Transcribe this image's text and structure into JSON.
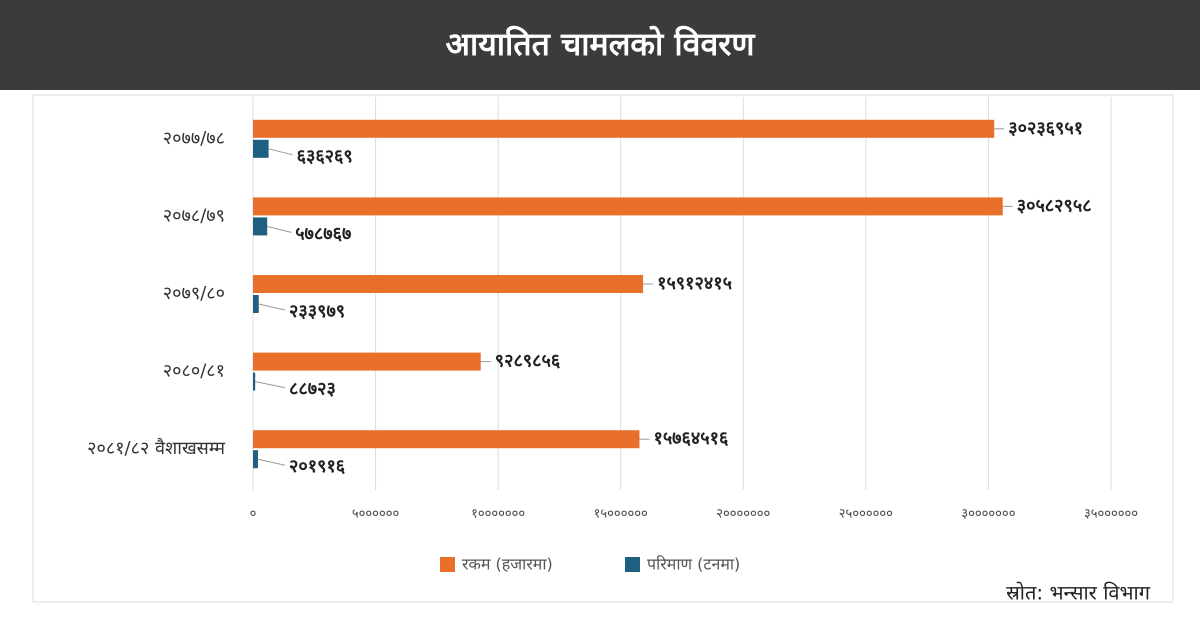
{
  "chart_data": {
    "type": "bar",
    "orientation": "horizontal",
    "title": "आयातित चामलको विवरण",
    "source": "स्रोत: भन्सार विभाग",
    "categories": [
      "२०७७/७८",
      "२०७८/७९",
      "२०७९/८०",
      "२०८०/८१",
      "२०८१/८२ वैशाखसम्म"
    ],
    "series": [
      {
        "name": "रकम (हजारमा)",
        "color": "#e8702a",
        "values": [
          30236951,
          30582958,
          15912415,
          9289856,
          15764516
        ],
        "value_labels": [
          "३०२३६९५१",
          "३०५८२९५८",
          "१५९१२४१५",
          "९२८९८५६",
          "१५७६४५१६"
        ]
      },
      {
        "name": "परिमाण (टनमा)",
        "color": "#1f5f7f",
        "values": [
          636269,
          578767,
          233979,
          88723,
          201916
        ],
        "value_labels": [
          "६३६२६९",
          "५७८७६७",
          "२३३९७९",
          "८८७२३",
          "२०१९१६"
        ]
      }
    ],
    "xlim": [
      0,
      35000000
    ],
    "xticks": [
      {
        "value": 0,
        "label": "०"
      },
      {
        "value": 5000000,
        "label": "५००००००"
      },
      {
        "value": 10000000,
        "label": "१०००००००"
      },
      {
        "value": 15000000,
        "label": "१५००००००"
      },
      {
        "value": 20000000,
        "label": "२०००००००"
      },
      {
        "value": 25000000,
        "label": "२५००००००"
      },
      {
        "value": 30000000,
        "label": "३०००००००"
      },
      {
        "value": 35000000,
        "label": "३५००००००"
      }
    ],
    "grid": true,
    "legend": "bottom"
  }
}
